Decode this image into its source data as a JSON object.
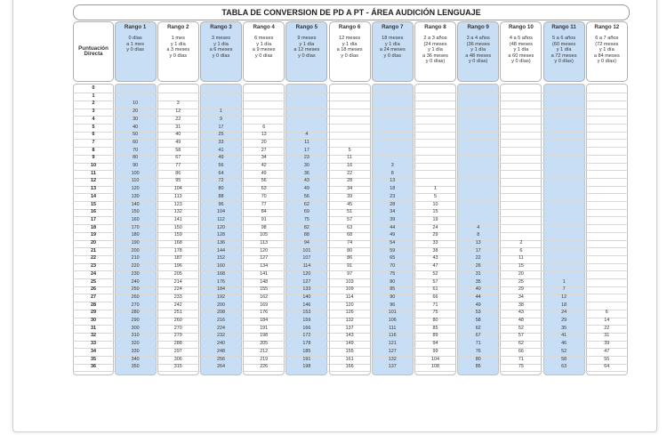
{
  "title": "TABLA DE CONVERSION DE PD A PT - ÁREA AUDICIÓN LENGUAJE",
  "pd_header": [
    "Puntuación",
    "Directa"
  ],
  "ranges": [
    {
      "name": "Rango 1",
      "desc": [
        "0 días",
        "a 1 mes",
        "y 0 días"
      ]
    },
    {
      "name": "Rango 2",
      "desc": [
        "1 mes",
        "y 1 día",
        "a 3 meses",
        "y 0 días"
      ]
    },
    {
      "name": "Rango 3",
      "desc": [
        "3 meses",
        "y 1 día",
        "a 6 meses",
        "y 0 días"
      ]
    },
    {
      "name": "Rango 4",
      "desc": [
        "6 meses",
        "y 1 día",
        "a 9 meses",
        "y 0 días"
      ]
    },
    {
      "name": "Rango 5",
      "desc": [
        "9 meses",
        "y 1 día",
        "a 12 meses",
        "y 0 días"
      ]
    },
    {
      "name": "Rango 6",
      "desc": [
        "12 meses",
        "y 1 día",
        "a 18 meses",
        "y 0 días"
      ]
    },
    {
      "name": "Rango 7",
      "desc": [
        "18 meses",
        "y 1 día",
        "a 24 meses",
        "y 0 días"
      ]
    },
    {
      "name": "Rango 8",
      "desc": [
        "2 a 3 años",
        "(24 meses",
        "y 1 día",
        "a 36 meses",
        "y 0 días)"
      ]
    },
    {
      "name": "Rango 9",
      "desc": [
        "3 a 4 años",
        "(36 meses",
        "y 1 día",
        "a 48 meses",
        "y 0 días)"
      ]
    },
    {
      "name": "Rango 10",
      "desc": [
        "4 a 5 años",
        "(48 meses",
        "y 1 día",
        "a 60 meses",
        "y 0 días)"
      ]
    },
    {
      "name": "Rango 11",
      "desc": [
        "5 a 6 años",
        "(60 meses",
        "y 1 día",
        "a 72 meses",
        "y 0 días)"
      ]
    },
    {
      "name": "Rango 12",
      "desc": [
        "6 a 7 años",
        "(72 meses",
        "y 1 día",
        "a 84 meses",
        "y 0 días)"
      ]
    }
  ],
  "rows": [
    [
      "0",
      "",
      "",
      "",
      "",
      "",
      "",
      "",
      "",
      "",
      "",
      "",
      ""
    ],
    [
      "1",
      "",
      "",
      "",
      "",
      "",
      "",
      "",
      "",
      "",
      "",
      "",
      ""
    ],
    [
      "2",
      "10",
      "3",
      "",
      "",
      "",
      "",
      "",
      "",
      "",
      "",
      "",
      ""
    ],
    [
      "3",
      "20",
      "12",
      "1",
      "",
      "",
      "",
      "",
      "",
      "",
      "",
      "",
      ""
    ],
    [
      "4",
      "30",
      "22",
      "9",
      "",
      "",
      "",
      "",
      "",
      "",
      "",
      "",
      ""
    ],
    [
      "5",
      "40",
      "31",
      "17",
      "6",
      "",
      "",
      "",
      "",
      "",
      "",
      "",
      ""
    ],
    [
      "6",
      "50",
      "40",
      "25",
      "13",
      "4",
      "",
      "",
      "",
      "",
      "",
      "",
      ""
    ],
    [
      "7",
      "60",
      "49",
      "33",
      "20",
      "11",
      "",
      "",
      "",
      "",
      "",
      "",
      ""
    ],
    [
      "8",
      "70",
      "58",
      "41",
      "27",
      "17",
      "5",
      "",
      "",
      "",
      "",
      "",
      ""
    ],
    [
      "9",
      "80",
      "67",
      "49",
      "34",
      "23",
      "11",
      "",
      "",
      "",
      "",
      "",
      ""
    ],
    [
      "10",
      "90",
      "77",
      "56",
      "42",
      "30",
      "16",
      "3",
      "",
      "",
      "",
      "",
      ""
    ],
    [
      "11",
      "100",
      "86",
      "64",
      "49",
      "36",
      "22",
      "8",
      "",
      "",
      "",
      "",
      ""
    ],
    [
      "12",
      "110",
      "95",
      "72",
      "56",
      "43",
      "28",
      "13",
      "",
      "",
      "",
      "",
      ""
    ],
    [
      "13",
      "120",
      "104",
      "80",
      "63",
      "49",
      "34",
      "18",
      "1",
      "",
      "",
      "",
      ""
    ],
    [
      "14",
      "130",
      "113",
      "88",
      "70",
      "56",
      "39",
      "23",
      "5",
      "",
      "",
      "",
      ""
    ],
    [
      "15",
      "140",
      "123",
      "96",
      "77",
      "62",
      "45",
      "28",
      "10",
      "",
      "",
      "",
      ""
    ],
    [
      "16",
      "150",
      "132",
      "104",
      "84",
      "69",
      "51",
      "34",
      "15",
      "",
      "",
      "",
      ""
    ],
    [
      "17",
      "160",
      "141",
      "112",
      "91",
      "75",
      "57",
      "39",
      "19",
      "",
      "",
      "",
      ""
    ],
    [
      "18",
      "170",
      "150",
      "120",
      "98",
      "82",
      "63",
      "44",
      "24",
      "4",
      "",
      "",
      ""
    ],
    [
      "19",
      "180",
      "159",
      "128",
      "105",
      "88",
      "68",
      "49",
      "29",
      "8",
      "",
      "",
      ""
    ],
    [
      "20",
      "190",
      "168",
      "136",
      "113",
      "94",
      "74",
      "54",
      "33",
      "13",
      "2",
      "",
      ""
    ],
    [
      "21",
      "200",
      "178",
      "144",
      "120",
      "101",
      "80",
      "59",
      "38",
      "17",
      "6",
      "",
      ""
    ],
    [
      "22",
      "210",
      "187",
      "152",
      "127",
      "107",
      "86",
      "65",
      "43",
      "22",
      "11",
      "",
      ""
    ],
    [
      "23",
      "220",
      "196",
      "160",
      "134",
      "114",
      "91",
      "70",
      "47",
      "26",
      "15",
      "",
      ""
    ],
    [
      "24",
      "230",
      "205",
      "168",
      "141",
      "120",
      "97",
      "75",
      "52",
      "31",
      "20",
      "",
      ""
    ],
    [
      "25",
      "240",
      "214",
      "176",
      "148",
      "127",
      "103",
      "80",
      "57",
      "35",
      "25",
      "1",
      ""
    ],
    [
      "26",
      "250",
      "224",
      "184",
      "155",
      "133",
      "109",
      "85",
      "61",
      "40",
      "29",
      "7",
      ""
    ],
    [
      "27",
      "260",
      "233",
      "192",
      "162",
      "140",
      "114",
      "90",
      "66",
      "44",
      "34",
      "12",
      ""
    ],
    [
      "28",
      "270",
      "242",
      "200",
      "169",
      "146",
      "120",
      "96",
      "71",
      "49",
      "38",
      "18",
      ""
    ],
    [
      "29",
      "280",
      "251",
      "208",
      "176",
      "153",
      "126",
      "101",
      "75",
      "53",
      "43",
      "24",
      "6"
    ],
    [
      "30",
      "290",
      "260",
      "216",
      "184",
      "159",
      "132",
      "106",
      "80",
      "58",
      "48",
      "29",
      "14"
    ],
    [
      "31",
      "300",
      "270",
      "224",
      "191",
      "166",
      "137",
      "111",
      "85",
      "62",
      "52",
      "35",
      "22"
    ],
    [
      "32",
      "310",
      "279",
      "232",
      "198",
      "172",
      "143",
      "116",
      "89",
      "67",
      "57",
      "41",
      "31"
    ],
    [
      "33",
      "320",
      "288",
      "240",
      "205",
      "178",
      "149",
      "121",
      "94",
      "71",
      "62",
      "46",
      "39"
    ],
    [
      "34",
      "330",
      "297",
      "248",
      "212",
      "185",
      "155",
      "127",
      "99",
      "76",
      "66",
      "52",
      "47"
    ],
    [
      "35",
      "340",
      "306",
      "256",
      "219",
      "191",
      "161",
      "132",
      "104",
      "80",
      "71",
      "58",
      "55"
    ],
    [
      "36",
      "350",
      "315",
      "264",
      "226",
      "198",
      "166",
      "137",
      "108",
      "85",
      "75",
      "63",
      "64"
    ]
  ]
}
